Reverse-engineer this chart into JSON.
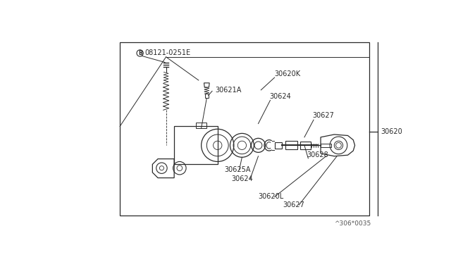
{
  "bg_color": "#ffffff",
  "line_color": "#2a2a2a",
  "text_color": "#2a2a2a",
  "watermark": "^306*0035",
  "labels": {
    "B_label": "08121-0251E",
    "30620K": "30620K",
    "30621A": "30621A",
    "30624_top": "30624",
    "30627_top": "30627",
    "30620": "30620",
    "30628": "30628",
    "30625A": "30625A",
    "30624_bot": "30624",
    "30620L": "30620L",
    "30627_bot": "30627"
  },
  "fig_width": 6.4,
  "fig_height": 3.72,
  "dpi": 100
}
